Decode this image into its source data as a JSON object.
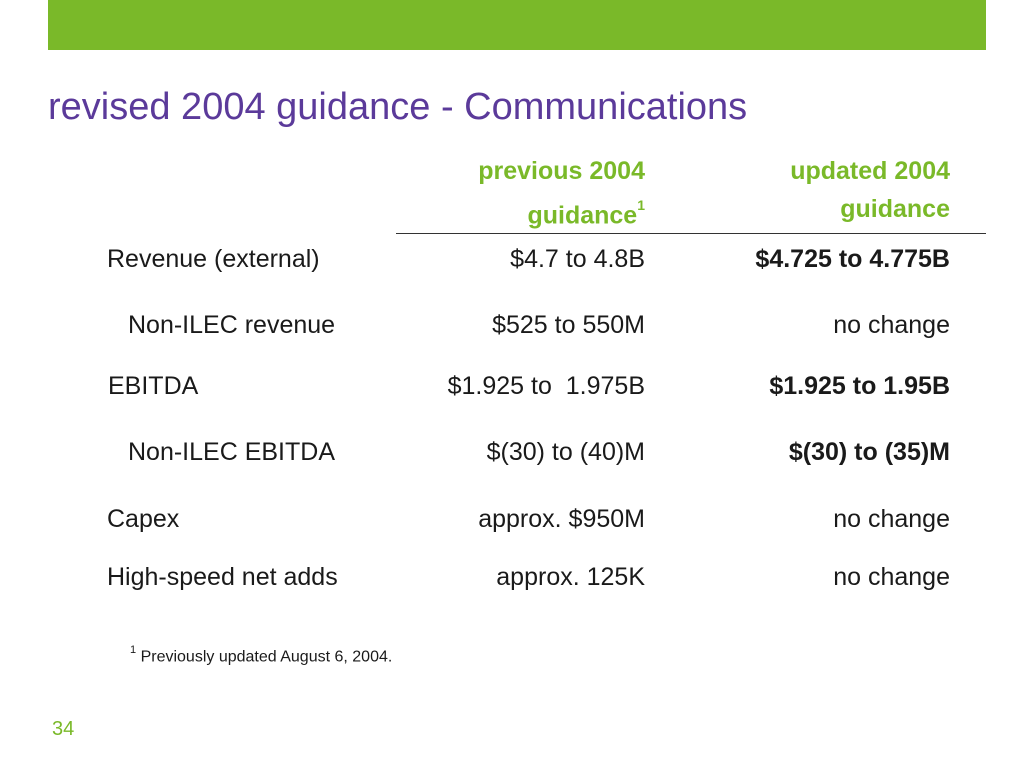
{
  "slide": {
    "title": "revised 2004 guidance - Communications",
    "page_number": "34",
    "accent_color": "#7ab929",
    "title_color": "#5b3a9a"
  },
  "table": {
    "headers": {
      "previous_line1": "previous 2004",
      "previous_line2": "guidance",
      "previous_footnote_mark": "1",
      "updated_line1": "updated 2004",
      "updated_line2": "guidance"
    },
    "rows": [
      {
        "label": "Revenue (external)",
        "previous": "$4.7 to 4.8B",
        "updated": "$4.725 to 4.775B",
        "updated_bold": true
      },
      {
        "label": "Non-ILEC revenue",
        "previous": "$525 to 550M",
        "updated": "no change",
        "updated_bold": false
      },
      {
        "label": "EBITDA",
        "previous": "$1.925 to  1.975B",
        "updated": "$1.925 to 1.95B",
        "updated_bold": true
      },
      {
        "label": "Non-ILEC EBITDA",
        "previous": "$(30) to (40)M",
        "updated": "$(30) to (35)M",
        "updated_bold": true
      },
      {
        "label": "Capex",
        "previous": "approx. $950M",
        "updated": "no change",
        "updated_bold": false
      },
      {
        "label": "High-speed net adds",
        "previous": "approx. 125K",
        "updated": "no change",
        "updated_bold": false
      }
    ]
  },
  "footnote": {
    "mark": "1",
    "text": " Previously updated August 6, 2004."
  }
}
